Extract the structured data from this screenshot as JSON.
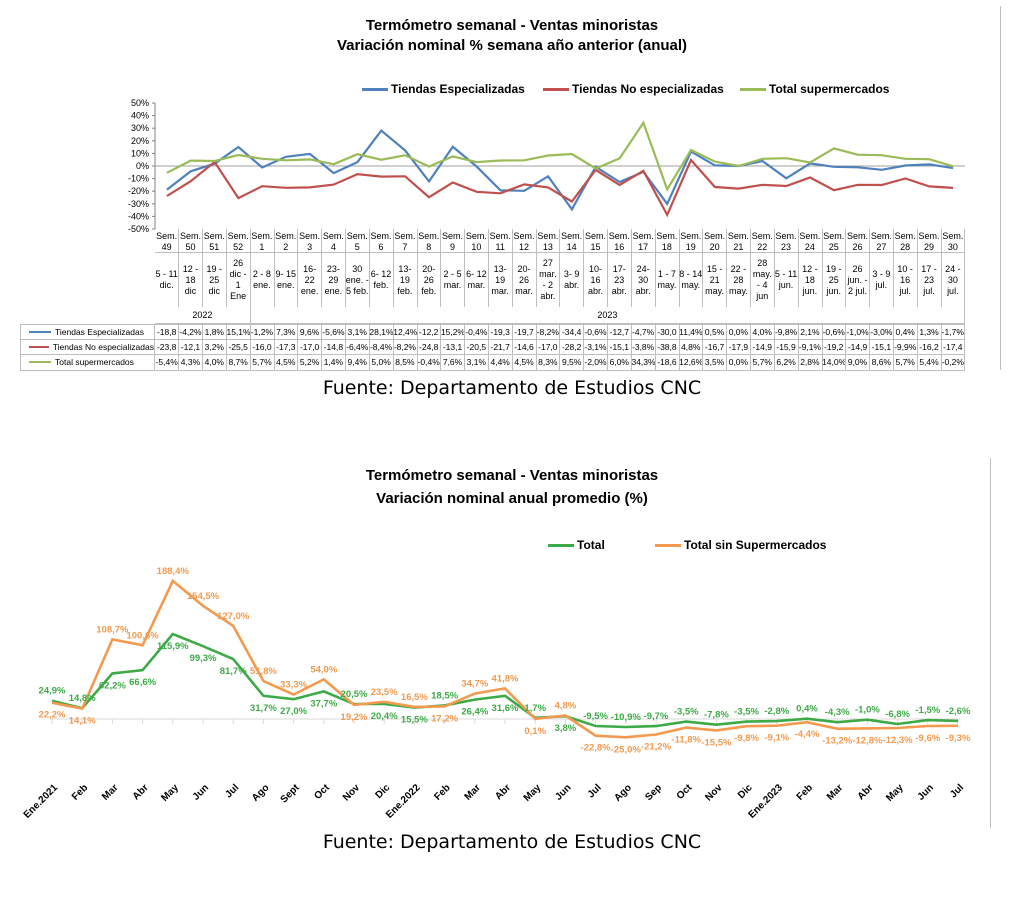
{
  "chart_data": [
    {
      "type": "line",
      "title": "Termómetro semanal - Ventas minoristas",
      "subtitle": "Variación nominal % semana año anterior (anual)",
      "ylim": [
        -50,
        50
      ],
      "y_ticks": [
        "50%",
        "40%",
        "30%",
        "20%",
        "10%",
        "0%",
        "-10%",
        "-20%",
        "-30%",
        "-40%",
        "-50%"
      ],
      "legend_placement": "top",
      "grid": false,
      "weeks": [
        "Sem. 49",
        "Sem. 50",
        "Sem. 51",
        "Sem. 52",
        "Sem. 1",
        "Sem. 2",
        "Sem. 3",
        "Sem. 4",
        "Sem. 5",
        "Sem. 6",
        "Sem. 7",
        "Sem. 8",
        "Sem. 9",
        "Sem. 10",
        "Sem. 11",
        "Sem. 12",
        "Sem. 13",
        "Sem. 14",
        "Sem. 15",
        "Sem. 16",
        "Sem. 17",
        "Sem. 18",
        "Sem. 19",
        "Sem. 20",
        "Sem. 21",
        "Sem. 22",
        "Sem. 23",
        "Sem. 24",
        "Sem. 25",
        "Sem. 26",
        "Sem. 27",
        "Sem. 28",
        "Sem. 29",
        "Sem. 30"
      ],
      "dates": [
        "5 - 11\ndic.",
        "12 -\n18\ndic",
        "19 -\n25\ndic",
        "26\ndic -\n1 Ene",
        "2 - 8\nene.",
        "9- 15\nene.",
        "16-\n22\nene.",
        "23-\n29\nene.",
        "30\nene. -\n5 feb.",
        "6- 12\nfeb.",
        "13-\n19\nfeb.",
        "20-\n26\nfeb.",
        "2 - 5\nmar.",
        "6- 12\nmar.",
        "13-\n19\nmar.",
        "20-\n26\nmar.",
        "27\nmar.\n- 2\nabr.",
        "3- 9\nabr.",
        "10-\n16\nabr.",
        "17-\n23\nabr.",
        "24-\n30\nabr.",
        "1 - 7\nmay.",
        "8 - 14\nmay.",
        "15 -\n21\nmay.",
        "22 -\n28\nmay.",
        "28\nmay.\n- 4\njun",
        "5 - 11\njun.",
        "12 -\n18\njun.",
        "19 -\n25\njun.",
        "26\njun. -\n2 jul.",
        "3 - 9\njul.",
        "10 -\n16\njul.",
        "17 -\n23\njul.",
        "24 -\n30\njul."
      ],
      "years": [
        {
          "label": "2022",
          "span": 4
        },
        {
          "label": "2023",
          "span": 30
        }
      ],
      "series": [
        {
          "name": "Tiendas Especializadas",
          "color": "#4f81bd",
          "values": [
            -18.8,
            -4.2,
            1.8,
            15.1,
            -1.2,
            7.3,
            9.6,
            -5.6,
            3.1,
            28.1,
            12.4,
            -12.2,
            15.2,
            -0.4,
            -19.3,
            -19.7,
            -8.2,
            -34.4,
            -0.6,
            -12.7,
            -4.7,
            -30.0,
            11.4,
            0.5,
            0.0,
            4.0,
            -9.8,
            2.1,
            -0.6,
            -1.0,
            -3.0,
            0.4,
            1.3,
            -1.7
          ],
          "table": [
            "-18,8",
            "-4,2%",
            "1,8%",
            "15,1%",
            "-1,2%",
            "7,3%",
            "9,6%",
            "-5,6%",
            "3,1%",
            "28,1%",
            "12,4%",
            "-12,2",
            "15,2%",
            "-0,4%",
            "-19,3",
            "-19,7",
            "-8,2%",
            "-34,4",
            "-0,6%",
            "-12,7",
            "-4,7%",
            "-30,0",
            "11,4%",
            "0,5%",
            "0,0%",
            "4,0%",
            "-9,8%",
            "2,1%",
            "-0,6%",
            "-1,0%",
            "-3,0%",
            "0,4%",
            "1,3%",
            "-1,7%"
          ]
        },
        {
          "name": "Tiendas No especializadas",
          "color": "#c0504d",
          "values": [
            -23.8,
            -12.1,
            3.2,
            -25.5,
            -16.0,
            -17.3,
            -17.0,
            -14.8,
            -6.4,
            -8.4,
            -8.2,
            -24.8,
            -13.1,
            -20.5,
            -21.7,
            -14.6,
            -17.0,
            -28.2,
            -3.1,
            -15.1,
            -3.8,
            -38.8,
            4.8,
            -16.7,
            -17.9,
            -14.9,
            -15.9,
            -9.1,
            -19.2,
            -14.9,
            -15.1,
            -9.9,
            -16.2,
            -17.4
          ],
          "table": [
            "-23,8",
            "-12,1",
            "3,2%",
            "-25,5",
            "-16,0",
            "-17,3",
            "-17,0",
            "-14,8",
            "-6,4%",
            "-8,4%",
            "-8,2%",
            "-24,8",
            "-13,1",
            "-20,5",
            "-21,7",
            "-14,6",
            "-17,0",
            "-28,2",
            "-3,1%",
            "-15,1",
            "-3,8%",
            "-38,8",
            "4,8%",
            "-16,7",
            "-17,9",
            "-14,9",
            "-15,9",
            "-9,1%",
            "-19,2",
            "-14,9",
            "-15,1",
            "-9,9%",
            "-16,2",
            "-17,4"
          ]
        },
        {
          "name": "Total supermercados",
          "color": "#9bbb59",
          "values": [
            -5.4,
            4.3,
            4.0,
            8.7,
            5.7,
            4.5,
            5.2,
            1.4,
            9.4,
            5.0,
            8.5,
            -0.4,
            7.6,
            3.1,
            4.4,
            4.5,
            8.3,
            9.5,
            -2.0,
            6.0,
            34.3,
            -18.6,
            12.6,
            3.5,
            0.0,
            5.7,
            6.2,
            2.8,
            14.0,
            9.0,
            8.6,
            5.7,
            5.4,
            -0.2
          ],
          "table": [
            "-5,4%",
            "4,3%",
            "4,0%",
            "8,7%",
            "5,7%",
            "4,5%",
            "5,2%",
            "1,4%",
            "9,4%",
            "5,0%",
            "8,5%",
            "-0,4%",
            "7,6%",
            "3,1%",
            "4,4%",
            "4,5%",
            "8,3%",
            "9,5%",
            "-2,0%",
            "6,0%",
            "34,3%",
            "-18,6",
            "12,6%",
            "3,5%",
            "0,0%",
            "5,7%",
            "6,2%",
            "2,8%",
            "14,0%",
            "9,0%",
            "8,6%",
            "5,7%",
            "5,4%",
            "-0,2%"
          ]
        }
      ]
    },
    {
      "type": "line",
      "title": "Termómetro semanal - Ventas minoristas",
      "subtitle": "Variación nominal anual promedio (%)",
      "legend_placement": "top",
      "grid": false,
      "categories": [
        "Ene.2021",
        "Feb",
        "Mar",
        "Abr",
        "May",
        "Jun",
        "Jul",
        "Ago",
        "Sept",
        "Oct",
        "Nov",
        "Dic",
        "Ene.2022",
        "Feb",
        "Mar",
        "Abr",
        "May",
        "Jun",
        "Jul",
        "Ago",
        "Sep",
        "Oct",
        "Nov",
        "Dic",
        "Ene.2023",
        "Feb",
        "Mar",
        "Abr",
        "May",
        "Jun",
        "Jul"
      ],
      "series": [
        {
          "name": "Total",
          "color": "#3daa47",
          "values": [
            24.9,
            14.8,
            62.2,
            66.6,
            115.9,
            99.3,
            81.7,
            31.7,
            27.0,
            37.7,
            20.5,
            20.4,
            15.5,
            18.5,
            26.4,
            31.6,
            1.7,
            3.8,
            -9.5,
            -10.9,
            -9.7,
            -3.5,
            -7.8,
            -3.5,
            -2.8,
            0.4,
            -4.3,
            -1.0,
            -6.8,
            -1.5,
            -2.6
          ],
          "labels": [
            "24,9%",
            "14,8%",
            "62,2%",
            "66,6%",
            "115,9%",
            "99,3%",
            "81,7%",
            "31,7%",
            "27,0%",
            "37,7%",
            "20,5%",
            "20,4%",
            "15,5%",
            "18,5%",
            "26,4%",
            "31,6%",
            "1,7%",
            "3,8%",
            "-9,5%",
            "-10,9%",
            "-9,7%",
            "-3,5%",
            "-7,8%",
            "-3,5%",
            "-2,8%",
            "0,4%",
            "-4,3%",
            "-1,0%",
            "-6,8%",
            "-1,5%",
            "-2,6%"
          ]
        },
        {
          "name": "Total sin Supermercados",
          "color": "#f39a4f",
          "values": [
            22.2,
            14.1,
            108.7,
            100.6,
            188.4,
            154.5,
            127.0,
            51.8,
            33.3,
            54.0,
            19.2,
            23.5,
            16.5,
            17.2,
            34.7,
            41.8,
            0.1,
            4.8,
            -22.8,
            -25.0,
            -21.2,
            -11.8,
            -15.5,
            -9.8,
            -9.1,
            -4.4,
            -13.2,
            -12.8,
            -12.3,
            -9.6,
            -9.3
          ],
          "labels": [
            "22,2%",
            "14,1%",
            "108,7%",
            "100,6%",
            "188,4%",
            "154,5%",
            "127,0%",
            "51,8%",
            "33,3%",
            "54,0%",
            "19,2%",
            "23,5%",
            "16,5%",
            "17,2%",
            "34,7%",
            "41,8%",
            "0,1%",
            "4,8%",
            "-22,8%",
            "-25,0%",
            "-21,2%",
            "-11,8%",
            "-15,5%",
            "-9,8%",
            "-9,1%",
            "-4,4%",
            "-13,2%",
            "-12,8%",
            "-12,3%",
            "-9,6%",
            "-9,3%"
          ]
        }
      ]
    }
  ],
  "sources": {
    "top": "Fuente: Departamento de Estudios CNC",
    "bottom": "Fuente: Departamento de Estudios CNC"
  }
}
